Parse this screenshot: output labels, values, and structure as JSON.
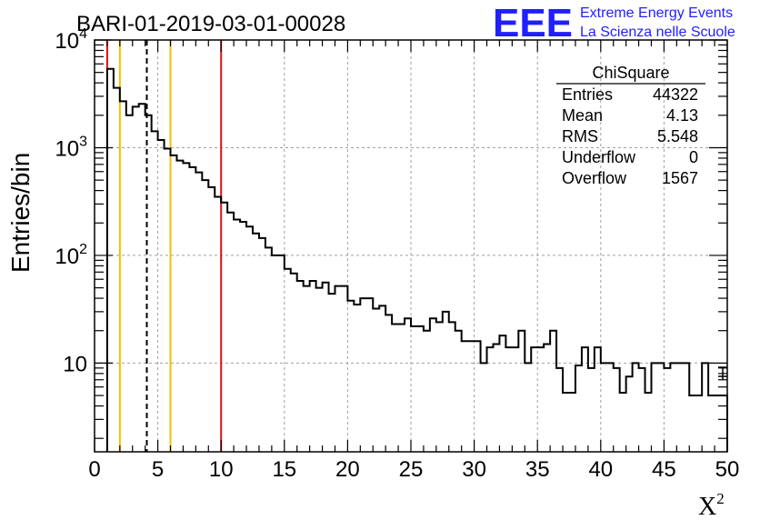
{
  "chart_data": {
    "type": "histogram",
    "title": "BARI-01-2019-03-01-00028",
    "xlabel": "X",
    "xlabel_sup": "2",
    "ylabel": "Entries/bin",
    "xlim": [
      0,
      50
    ],
    "ylim": [
      1.5,
      10000
    ],
    "yscale": "log",
    "grid": true,
    "bin_width": 0.5,
    "x_ticks": [
      0,
      5,
      10,
      15,
      20,
      25,
      30,
      35,
      40,
      45,
      50
    ],
    "y_tick_labels": [
      {
        "value": 10,
        "base": "10",
        "exp": ""
      },
      {
        "value": 100,
        "base": "10",
        "exp": "2"
      },
      {
        "value": 1000,
        "base": "10",
        "exp": "3"
      },
      {
        "value": 10000,
        "base": "10",
        "exp": "4"
      }
    ],
    "values": [
      0,
      0,
      5400,
      3600,
      2700,
      2000,
      2400,
      2550,
      2000,
      1420,
      1180,
      980,
      850,
      760,
      720,
      660,
      590,
      500,
      430,
      350,
      310,
      250,
      215,
      205,
      185,
      160,
      145,
      118,
      100,
      100,
      75,
      68,
      58,
      52,
      58,
      50,
      56,
      44,
      52,
      52,
      38,
      35,
      40,
      40,
      32,
      34,
      28,
      23,
      23,
      26,
      22,
      22,
      20,
      26,
      24,
      30,
      24,
      20,
      16,
      16,
      16,
      10,
      14,
      15,
      18,
      14,
      14,
      20,
      10,
      14,
      14,
      15,
      20,
      9,
      5.3,
      5.3,
      9.5,
      14,
      9,
      14,
      10,
      10,
      9,
      5.3,
      7.5,
      10,
      9,
      5.3,
      10,
      10,
      9,
      10,
      10,
      10,
      5,
      5,
      10,
      5,
      5,
      5
    ],
    "stats": {
      "title": "ChiSquare",
      "rows": [
        {
          "label": "Entries",
          "value": "44322"
        },
        {
          "label": "Mean",
          "value": "4.13"
        },
        {
          "label": "RMS",
          "value": "5.548"
        },
        {
          "label": "Underflow",
          "value": "0"
        },
        {
          "label": "Overflow",
          "value": "1567"
        }
      ]
    },
    "vertical_lines": [
      {
        "x": 1,
        "color": "#e01010",
        "style": "solid"
      },
      {
        "x": 2,
        "color": "#f0c000",
        "style": "solid"
      },
      {
        "x": 4.13,
        "color": "#000000",
        "style": "dashed"
      },
      {
        "x": 6,
        "color": "#f0c000",
        "style": "solid"
      },
      {
        "x": 10,
        "color": "#e01010",
        "style": "solid"
      }
    ],
    "colors": {
      "logo": "#1f1fff",
      "grid": "#a0a0a0"
    }
  },
  "logo": {
    "mark": "EEE",
    "line1": "Extreme Energy Events",
    "line2": "La Scienza nelle Scuole"
  }
}
